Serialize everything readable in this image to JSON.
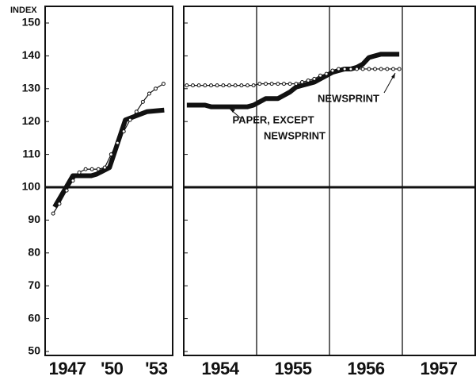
{
  "chart_data": [
    {
      "type": "line",
      "ylabel": "INDEX",
      "xlim": [
        1946,
        1954.6
      ],
      "xticks": [
        {
          "value": 1947.5,
          "label": "1947"
        },
        {
          "value": 1950.5,
          "label": "'50"
        },
        {
          "value": 1953.5,
          "label": "'53"
        }
      ],
      "ylim": [
        50,
        150
      ],
      "yticks": [
        50,
        60,
        70,
        80,
        90,
        100,
        110,
        120,
        130,
        140,
        150
      ],
      "baseline": 100,
      "series": [
        {
          "color": "#111111",
          "width": 6,
          "marker": "none",
          "x": [
            1946.64,
            1947.87,
            1949.11,
            1949.48,
            1950.34,
            1951.41,
            1952.86,
            1954.03
          ],
          "values": [
            94,
            103.5,
            103.5,
            104,
            106,
            120.5,
            123,
            123.5
          ]
        },
        {
          "color": "#111111",
          "width": 1.2,
          "marker": "circle",
          "x": [
            1946.54,
            1946.96,
            1947.45,
            1947.87,
            1948.3,
            1948.73,
            1949.16,
            1949.59,
            1950.02,
            1950.45,
            1950.88,
            1951.3,
            1951.73,
            1952.16,
            1952.59,
            1953.02,
            1953.45,
            1953.98
          ],
          "values": [
            92,
            95,
            99,
            102,
            104.5,
            105.5,
            105.5,
            105.5,
            106,
            110,
            113.5,
            117,
            120.5,
            123,
            126,
            128.5,
            130,
            131.5
          ]
        }
      ]
    },
    {
      "type": "line",
      "xlim": [
        1954,
        1958
      ],
      "xticks": [
        {
          "value": 1954.5,
          "label": "1954"
        },
        {
          "value": 1955.5,
          "label": "1955"
        },
        {
          "value": 1956.5,
          "label": "1956"
        },
        {
          "value": 1957.5,
          "label": "1957"
        }
      ],
      "xgrid": [
        1955,
        1956,
        1957
      ],
      "ylim": [
        50,
        150
      ],
      "yticks": [
        50,
        60,
        70,
        80,
        90,
        100,
        110,
        120,
        130,
        140,
        150
      ],
      "baseline": 100,
      "annotations": [
        "NEWSPRINT",
        "PAPER, EXCEPT",
        "NEWSPRINT"
      ],
      "series": [
        {
          "color": "#111111",
          "width": 6,
          "marker": "none",
          "x": [
            1954.042,
            1954.125,
            1954.208,
            1954.292,
            1954.375,
            1954.458,
            1954.542,
            1954.625,
            1954.708,
            1954.792,
            1954.875,
            1954.958,
            1955.042,
            1955.125,
            1955.208,
            1955.292,
            1955.375,
            1955.458,
            1955.542,
            1955.625,
            1955.708,
            1955.792,
            1955.875,
            1955.958,
            1956.042,
            1956.125,
            1956.208,
            1956.292,
            1956.375,
            1956.458,
            1956.542,
            1956.625,
            1956.708,
            1956.792,
            1956.875,
            1956.958
          ],
          "values": [
            125,
            125,
            125,
            125,
            124.5,
            124.5,
            124.5,
            124.5,
            124.5,
            124.5,
            124.5,
            125,
            126,
            127,
            127,
            127,
            128,
            129,
            130.5,
            131,
            131.5,
            132,
            133,
            134,
            135,
            135.5,
            136,
            136,
            136.5,
            137.5,
            139.5,
            140,
            140.5,
            140.5,
            140.5,
            140.5
          ]
        },
        {
          "color": "#111111",
          "width": 1.2,
          "marker": "circle",
          "x": [
            1954.042,
            1954.125,
            1954.208,
            1954.292,
            1954.375,
            1954.458,
            1954.542,
            1954.625,
            1954.708,
            1954.792,
            1954.875,
            1954.958,
            1955.042,
            1955.125,
            1955.208,
            1955.292,
            1955.375,
            1955.458,
            1955.542,
            1955.625,
            1955.708,
            1955.792,
            1955.875,
            1955.958,
            1956.042,
            1956.125,
            1956.208,
            1956.292,
            1956.375,
            1956.458,
            1956.542,
            1956.625,
            1956.708,
            1956.792,
            1956.875,
            1956.958
          ],
          "values": [
            131,
            131,
            131,
            131,
            131,
            131,
            131,
            131,
            131,
            131,
            131,
            131,
            131.5,
            131.5,
            131.5,
            131.5,
            131.5,
            131.5,
            131.5,
            132,
            132.5,
            133,
            134,
            134.5,
            135.5,
            136,
            136,
            136,
            136,
            136,
            136,
            136,
            136,
            136,
            136,
            136
          ]
        }
      ]
    }
  ]
}
